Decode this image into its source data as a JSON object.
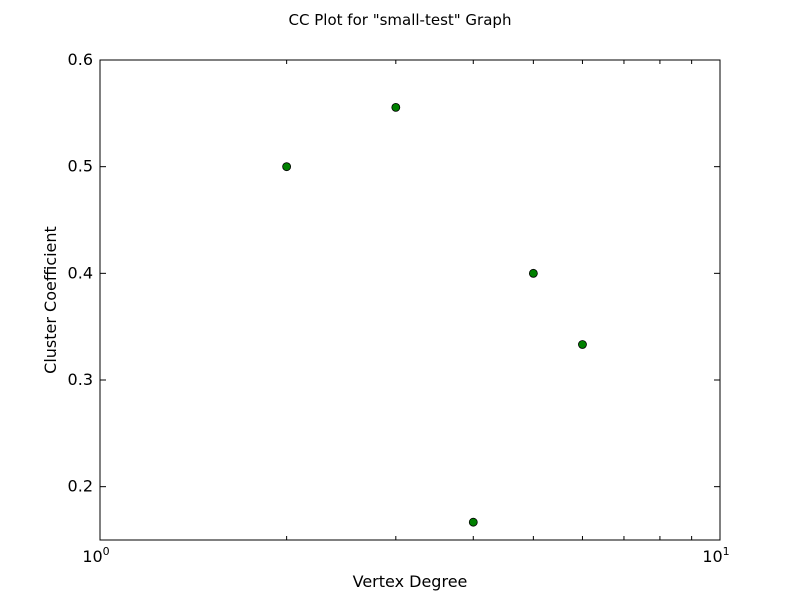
{
  "chart_data": {
    "type": "scatter",
    "title": "CC Plot for \"small-test\" Graph",
    "xlabel": "Vertex Degree",
    "ylabel": "Cluster Coefficient",
    "x_scale": "log",
    "xlim": [
      1,
      10
    ],
    "ylim": [
      0.15,
      0.6
    ],
    "x_ticks": [
      {
        "value": 1,
        "base": "10",
        "exp": "0"
      },
      {
        "value": 10,
        "base": "10",
        "exp": "1"
      }
    ],
    "y_ticks": [
      0.2,
      0.3,
      0.4,
      0.5,
      0.6
    ],
    "y_tick_labels": [
      "0.2",
      "0.3",
      "0.4",
      "0.5",
      "0.6"
    ],
    "grid": false,
    "marker_color": "#008000",
    "marker_edge_color": "#000000",
    "series": [
      {
        "x": [
          2,
          3,
          4,
          5,
          6
        ],
        "y": [
          0.5,
          0.5556,
          0.1667,
          0.4,
          0.3333
        ]
      }
    ]
  }
}
